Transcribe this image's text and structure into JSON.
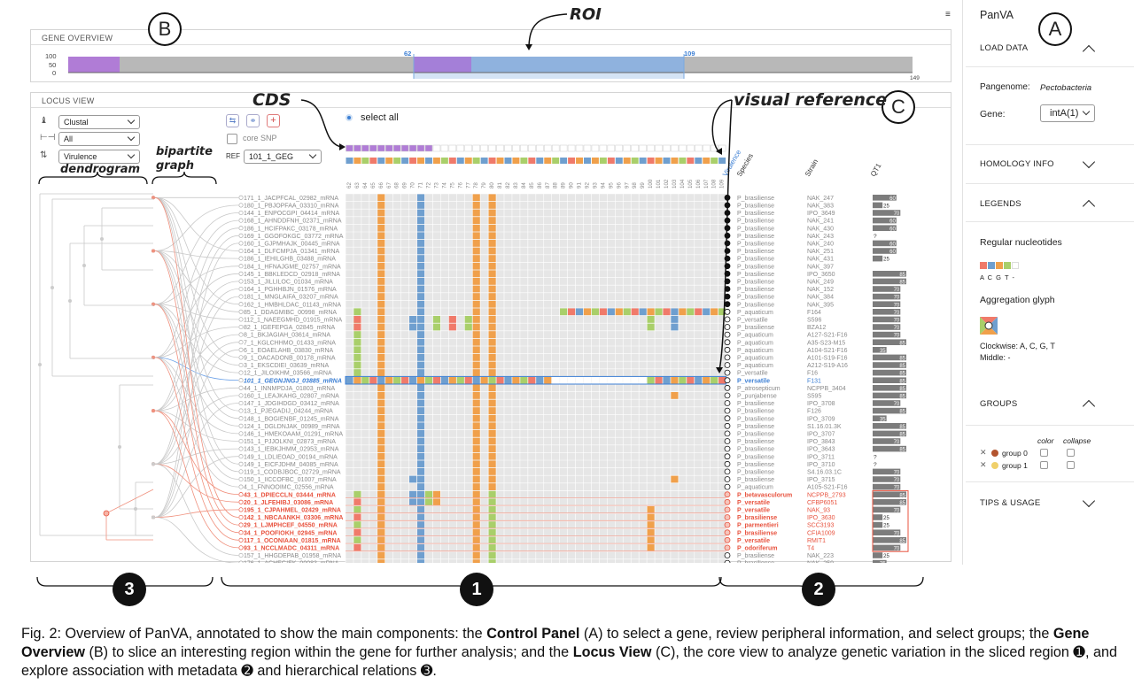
{
  "gene_overview": {
    "header": "GENE OVERVIEW",
    "y_ticks": [
      "100",
      "50",
      "0"
    ],
    "start": "62",
    "end": "109",
    "length": "149"
  },
  "locus_view": {
    "header": "LOCUS VIEW",
    "color_by": "Clustal",
    "filter": "All",
    "sort_by": "Virulence",
    "core_snp_label": "core SNP",
    "ref_label": "REF",
    "ref_value": "101_1_GEG",
    "select_all": "select all",
    "positions": [
      "62",
      "63",
      "64",
      "65",
      "66",
      "67",
      "68",
      "69",
      "70",
      "71",
      "72",
      "73",
      "74",
      "75",
      "76",
      "77",
      "78",
      "79",
      "80",
      "81",
      "82",
      "83",
      "84",
      "85",
      "86",
      "87",
      "88",
      "89",
      "90",
      "91",
      "92",
      "93",
      "94",
      "95",
      "96",
      "97",
      "98",
      "99",
      "100",
      "101",
      "102",
      "103",
      "104",
      "105",
      "106",
      "107",
      "108",
      "109"
    ],
    "meta_headers": {
      "virulence": "Virulence",
      "species": "Species",
      "strain": "Strain",
      "qt": "QT1"
    },
    "rows": [
      {
        "label": "171_1_JACPFCAL_02982_mRNA",
        "species": "P_brasiliense",
        "strain": "NAK_247",
        "qt": "60"
      },
      {
        "label": "180_1_PBJOPFAA_03310_mRNA",
        "species": "P_brasiliense",
        "strain": "NAK_383",
        "qt": "25"
      },
      {
        "label": "144_1_ENPOCGPI_04414_mRNA",
        "species": "P_brasiliense",
        "strain": "IPO_3649",
        "qt": "70"
      },
      {
        "label": "168_1_AHNDDFNH_02371_mRNA",
        "species": "P_brasiliense",
        "strain": "NAK_241",
        "qt": "60"
      },
      {
        "label": "186_1_HCIFPAKC_03178_mRNA",
        "species": "P_brasiliense",
        "strain": "NAK_430",
        "qt": "60"
      },
      {
        "label": "169_1_GGOFOKGC_03772_mRNA",
        "species": "P_brasiliense",
        "strain": "NAK_243",
        "qt": "?"
      },
      {
        "label": "160_1_GJPMHAJK_00445_mRNA",
        "species": "P_brasiliense",
        "strain": "NAK_240",
        "qt": "60"
      },
      {
        "label": "164_1_DLFCMPJA_01341_mRNA",
        "species": "P_brasiliense",
        "strain": "NAK_251",
        "qt": "60"
      },
      {
        "label": "186_1_IEHILGHB_03488_mRNA",
        "species": "P_brasiliense",
        "strain": "NAK_431",
        "qt": "25"
      },
      {
        "label": "184_1_HFNAJGME_02757_mRNA",
        "species": "P_brasiliense",
        "strain": "NAK_397",
        "qt": ""
      },
      {
        "label": "145_1_BBKLEDCD_02918_mRNA",
        "species": "P_brasiliense",
        "strain": "IPO_3650",
        "qt": "85"
      },
      {
        "label": "153_1_JILLILOC_01034_mRNA",
        "species": "P_brasiliense",
        "strain": "NAK_249",
        "qt": "85"
      },
      {
        "label": "164_1_PGHHBJN_01576_mRNA",
        "species": "P_brasiliense",
        "strain": "NAK_152",
        "qt": "70"
      },
      {
        "label": "181_1_MNGLAIFA_03207_mRNA",
        "species": "P_brasiliense",
        "strain": "NAK_384",
        "qt": "70"
      },
      {
        "label": "162_1_HMBHLDAC_01143_mRNA",
        "species": "P_brasiliense",
        "strain": "NAK_395",
        "qt": "70"
      },
      {
        "label": "85_1_DDAGMIBC_00998_mRNA",
        "species": "P_aquaticum",
        "strain": "F164",
        "qt": "70"
      },
      {
        "label": "112_1_NAEEGMHD_01915_mRNA",
        "species": "P_versatile",
        "strain": "S596",
        "qt": "70"
      },
      {
        "label": "82_1_IGEFEPGA_02845_mRNA",
        "species": "P_brasiliense",
        "strain": "BZA12",
        "qt": "70"
      },
      {
        "label": "8_1_BKJAGIAH_03614_mRNA",
        "species": "P_aquaticum",
        "strain": "A127-S21-F16",
        "qt": "70"
      },
      {
        "label": "7_1_KGLCHHMO_01433_mRNA",
        "species": "P_aquaticum",
        "strain": "A35-S23-M15",
        "qt": "85"
      },
      {
        "label": "6_1_EOAELAHB_03830_mRNA",
        "species": "P_aquaticum",
        "strain": "A104-S21-F16",
        "qt": "35"
      },
      {
        "label": "9_1_OACADONB_00178_mRNA",
        "species": "P_aquaticum",
        "strain": "A101-S19-F16",
        "qt": "85"
      },
      {
        "label": "3_1_EKSCDIEI_03639_mRNA",
        "species": "P_aquaticum",
        "strain": "A212-S19-A16",
        "qt": "85"
      },
      {
        "label": "12_1_JILOIKHM_03566_mRNA",
        "species": "P_versatile",
        "strain": "F16",
        "qt": "85"
      },
      {
        "label": "101_1_GEGNJNGJ_03885_mRNA",
        "species": "P_versatile",
        "strain": "F131",
        "qt": "85"
      },
      {
        "label": "44_1_INNMPDJA_01803_mRNA",
        "species": "P_atrosepticum",
        "strain": "NCPPB_3404",
        "qt": "85"
      },
      {
        "label": "160_1_LEAJKAHG_02807_mRNA",
        "species": "P_punjabense",
        "strain": "S595",
        "qt": "85"
      },
      {
        "label": "147_1_JDGIHDGD_03412_mRNA",
        "species": "P_brasiliense",
        "strain": "IPO_3708",
        "qt": "70"
      },
      {
        "label": "13_1_PJEGADIJ_04244_mRNA",
        "species": "P_brasiliense",
        "strain": "F126",
        "qt": "85"
      },
      {
        "label": "148_1_BOGIENBF_01245_mRNA",
        "species": "P_brasiliense",
        "strain": "IPO_3709",
        "qt": "35"
      },
      {
        "label": "124_1_DGLDNJAK_00989_mRNA",
        "species": "P_brasiliense",
        "strain": "S1.16.01.3K",
        "qt": "85"
      },
      {
        "label": "146_1_HMEKOAAM_01291_mRNA",
        "species": "P_brasiliense",
        "strain": "IPO_3707",
        "qt": "85"
      },
      {
        "label": "151_1_PJJOLKNI_02873_mRNA",
        "species": "P_brasiliense",
        "strain": "IPO_3843",
        "qt": "70"
      },
      {
        "label": "143_1_IEBKJHMM_02953_mRNA",
        "species": "P_brasiliense",
        "strain": "IPO_3643",
        "qt": "85"
      },
      {
        "label": "149_1_LDLIEOAD_00194_mRNA",
        "species": "P_brasiliense",
        "strain": "IPO_3711",
        "qt": "?"
      },
      {
        "label": "149_1_EICFJDHM_04085_mRNA",
        "species": "P_brasiliense",
        "strain": "IPO_3710",
        "qt": "?"
      },
      {
        "label": "119_1_CODBJBOC_02729_mRNA",
        "species": "P_brasiliense",
        "strain": "S4.16.03.1C",
        "qt": "70"
      },
      {
        "label": "150_1_IICCOFBC_01007_mRNA",
        "species": "P_brasiliense",
        "strain": "IPO_3715",
        "qt": "70"
      },
      {
        "label": "4_1_FNNOOIMC_02556_mRNA",
        "species": "P_aquaticum",
        "strain": "A105-S21-F16",
        "qt": "70"
      },
      {
        "label": "43_1_DPIECCLN_03444_mRNA",
        "species": "P_betavasculorum",
        "strain": "NCPPB_2793",
        "qt": "85"
      },
      {
        "label": "20_1_JLFEHIBJ_03086_mRNA",
        "species": "P_versatile",
        "strain": "CFBP6051",
        "qt": "85"
      },
      {
        "label": "195_1_CJPAHMEL_02429_mRNA",
        "species": "P_versatile",
        "strain": "NAK_93",
        "qt": "70"
      },
      {
        "label": "142_1_NBCAANKH_03306_mRNA",
        "species": "P_brasiliense",
        "strain": "IPO_3630",
        "qt": "25"
      },
      {
        "label": "29_1_LJMPHCEF_04550_mRNA",
        "species": "P_parmentieri",
        "strain": "SCC3193",
        "qt": "25"
      },
      {
        "label": "34_1_POOFIOKH_02945_mRNA",
        "species": "P_brasiliense",
        "strain": "CFIA1009",
        "qt": "70"
      },
      {
        "label": "117_1_OCONIAAN_01815_mRNA",
        "species": "P_versatile",
        "strain": "RMIT1",
        "qt": "85"
      },
      {
        "label": "93_1_NCCLMADC_04311_mRNA",
        "species": "P_odoriferum",
        "strain": "T4",
        "qt": "70"
      },
      {
        "label": "157_1_HHGDEPAB_01958_mRNA",
        "species": "P_brasiliense",
        "strain": "NAK_223",
        "qt": "25"
      },
      {
        "label": "176_1_ACHEGIEK_00083_mRNA",
        "species": "P_brasiliense",
        "strain": "NAK_259",
        "qt": "35"
      }
    ]
  },
  "control_panel": {
    "title": "PanVA",
    "load_data": "LOAD DATA",
    "pangenome_label": "Pangenome:",
    "pangenome_value": "Pectobacteria",
    "gene_label": "Gene:",
    "gene_value": "intA(1)",
    "homology_info": "HOMOLOGY INFO",
    "legends": "LEGENDS",
    "regular_nucleotides": "Regular nucleotides",
    "nucleotide_letters": "A C G T -",
    "aggregation_glyph": "Aggregation glyph",
    "clockwise": "Clockwise: A, C, G, T",
    "middle": "Middle: -",
    "groups": "GROUPS",
    "color_col": "color",
    "collapse_col": "collapse",
    "group0": "group 0",
    "group1": "group 1",
    "tips": "TIPS & USAGE"
  },
  "annotations": {
    "roi": "ROI",
    "cds": "CDS",
    "visual_reference": "visual reference",
    "dendrogram": "dendrogram",
    "bipartite_graph": "bipartite\ngraph",
    "A": "A",
    "B": "B",
    "C": "C",
    "n1": "1",
    "n2": "2",
    "n3": "3"
  },
  "caption": {
    "p1": "Fig. 2: Overview of PanVA, annotated to show the main components: the ",
    "b1": "Control Panel",
    "p2": " (A) to select a gene, review peripheral information, and select groups; the ",
    "b2": "Gene Overview",
    "p3": " (B) to slice an interesting region within the gene for further analysis; and the ",
    "b3": "Locus View",
    "p4": " (C), the core view to analyze genetic variation in the sliced region ➊, and explore association with metadata ➋ and hierarchical relations ➌."
  },
  "colors": {
    "A": "#f0a04b",
    "C": "#6f9fcf",
    "G": "#f07a6a",
    "T": "#a9cf6a",
    "gap": "#ffffff",
    "cds": "#b07cd6",
    "red": "#e8533f",
    "blue": "#3c7fd4"
  }
}
